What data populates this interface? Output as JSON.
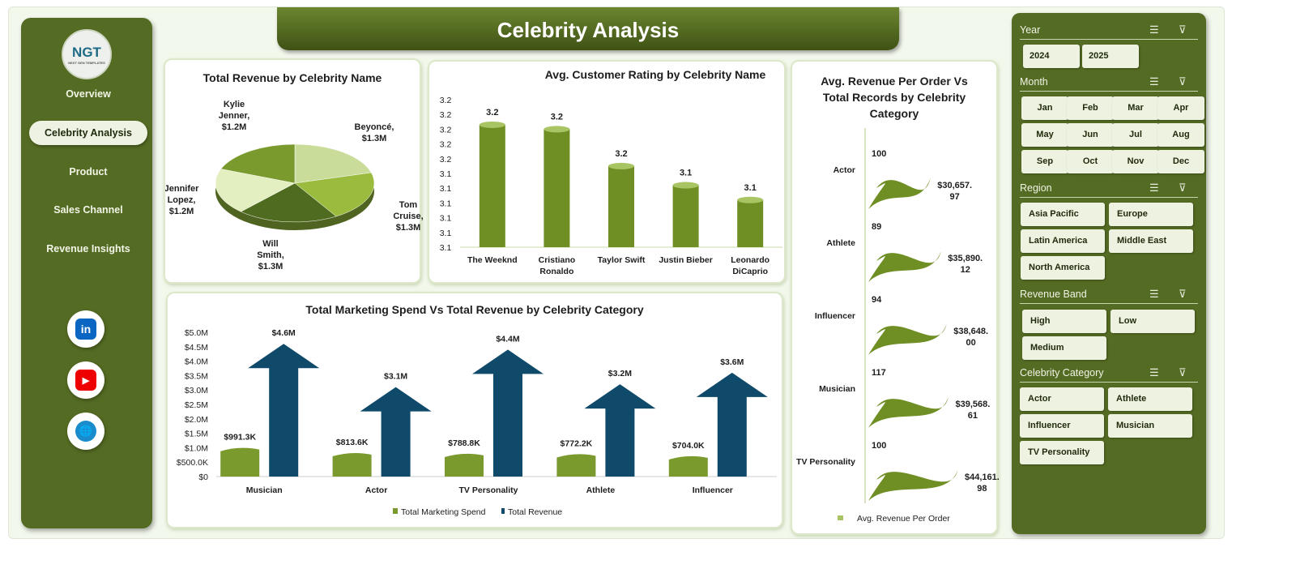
{
  "title": "Celebrity Analysis",
  "logo": {
    "text": "NGT",
    "subtext": "NEXT GEN TEMPLATES"
  },
  "nav": [
    "Overview",
    "Celebrity Analysis",
    "Product",
    "Sales Channel",
    "Revenue Insights"
  ],
  "nav_active": "Celebrity Analysis",
  "social": [
    {
      "icon": "linkedin-icon",
      "label": "in",
      "color": "#0a66c2"
    },
    {
      "icon": "youtube-icon",
      "label": "▶",
      "color": "#e00"
    },
    {
      "icon": "globe-icon",
      "label": "🌐",
      "color": "#1a8ccc"
    }
  ],
  "colors": {
    "sidebar": "#546b23",
    "accent_green": "#7a9a2e",
    "navy": "#0f4a6b"
  },
  "filters": {
    "year": {
      "label": "Year",
      "options": [
        "2024",
        "2025"
      ]
    },
    "month": {
      "label": "Month",
      "options": [
        "Jan",
        "Feb",
        "Mar",
        "Apr",
        "May",
        "Jun",
        "Jul",
        "Aug",
        "Sep",
        "Oct",
        "Nov",
        "Dec"
      ]
    },
    "region": {
      "label": "Region",
      "options": [
        "Asia Pacific",
        "Europe",
        "Latin America",
        "Middle East",
        "North America"
      ]
    },
    "revenue_band": {
      "label": "Revenue Band",
      "options": [
        "High",
        "Low",
        "Medium"
      ]
    },
    "celebrity_category": {
      "label": "Celebrity Category",
      "options": [
        "Actor",
        "Athlete",
        "Influencer",
        "Musician",
        "TV Personality"
      ]
    }
  },
  "chart_data": [
    {
      "type": "pie",
      "title": "Total Revenue by Celebrity Name",
      "categories": [
        "Beyoncé",
        "Tom Cruise",
        "Will Smith",
        "Jennifer Lopez",
        "Kylie Jenner"
      ],
      "values": [
        1.3,
        1.3,
        1.3,
        1.2,
        1.2
      ],
      "labels": [
        "$1.3M",
        "$1.3M",
        "$1.3M",
        "$1.2M",
        "$1.2M"
      ]
    },
    {
      "type": "bar",
      "title": "Avg. Customer Rating by Celebrity Name",
      "categories": [
        "The Weeknd",
        "Cristiano Ronaldo",
        "Taylor Swift",
        "Justin Bieber",
        "Leonardo DiCaprio"
      ],
      "values": [
        3.183,
        3.18,
        3.155,
        3.142,
        3.132
      ],
      "labels": [
        "3.2",
        "3.2",
        "3.2",
        "3.1",
        "3.1"
      ],
      "ylim": [
        3.1,
        3.2
      ],
      "yticks": [
        "3.2",
        "3.2",
        "3.2",
        "3.2",
        "3.2",
        "3.1",
        "3.1",
        "3.1",
        "3.1",
        "3.1",
        "3.1"
      ]
    },
    {
      "type": "bar",
      "title": "Total Marketing Spend Vs Total Revenue by Celebrity Category",
      "categories": [
        "Musician",
        "Actor",
        "TV Personality",
        "Athlete",
        "Influencer"
      ],
      "series": [
        {
          "name": "Total Marketing Spend",
          "values": [
            991.3,
            813.6,
            788.8,
            772.2,
            704.0
          ],
          "labels": [
            "$991.3K",
            "$813.6K",
            "$788.8K",
            "$772.2K",
            "$704.0K"
          ],
          "color": "#7a9a2e"
        },
        {
          "name": "Total Revenue",
          "values": [
            4600,
            3100,
            4400,
            3200,
            3600
          ],
          "labels": [
            "$4.6M",
            "$3.1M",
            "$4.4M",
            "$3.2M",
            "$3.6M"
          ],
          "color": "#0f4a6b"
        }
      ],
      "ylim": [
        0,
        5000
      ],
      "yticks": [
        "$0",
        "$500.0K",
        "$1.0M",
        "$1.5M",
        "$2.0M",
        "$2.5M",
        "$3.0M",
        "$3.5M",
        "$4.0M",
        "$4.5M",
        "$5.0M"
      ],
      "legend": "bottom"
    },
    {
      "type": "bar",
      "title": "Avg. Revenue Per Order Vs Total Records  by Celebrity Category",
      "categories": [
        "Actor",
        "Athlete",
        "Influencer",
        "Musician",
        "TV Personality"
      ],
      "records": [
        100,
        89,
        94,
        117,
        100
      ],
      "avg_revenue": [
        "$30,657.97",
        "$35,890.12",
        "$38,648.00",
        "$39,568.61",
        "$44,161.98"
      ],
      "values": [
        30657.97,
        35890.12,
        38648.0,
        39568.61,
        44161.98
      ],
      "legend_label": "Avg. Revenue Per Order",
      "legend": "bottom"
    }
  ]
}
